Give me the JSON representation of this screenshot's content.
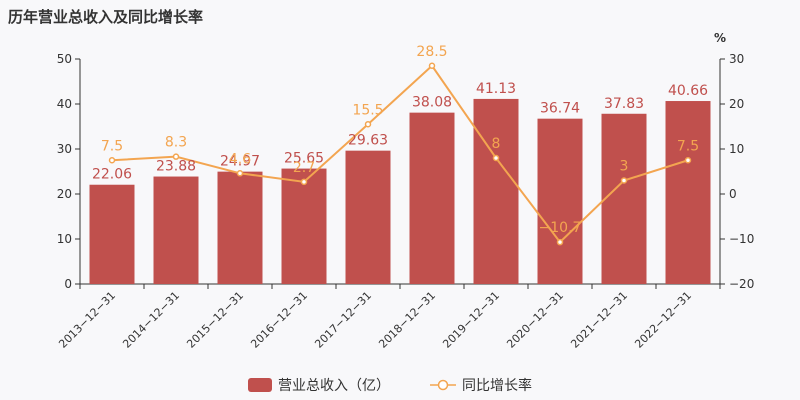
{
  "title": "历年营业总收入及同比增长率",
  "chart_data": {
    "type": "bar",
    "categories": [
      "2013-12-31",
      "2014-12-31",
      "2015-12-31",
      "2016-12-31",
      "2017-12-31",
      "2018-12-31",
      "2019-12-31",
      "2020-12-31",
      "2021-12-31",
      "2022-12-31"
    ],
    "series": [
      {
        "name": "营业总收入（亿）",
        "type": "bar",
        "axis": "left",
        "values": [
          22.06,
          23.88,
          24.97,
          25.65,
          29.63,
          38.08,
          41.13,
          36.74,
          37.83,
          40.66
        ],
        "color": "#c0504d"
      },
      {
        "name": "同比增长率",
        "type": "line",
        "axis": "right",
        "values": [
          7.5,
          8.3,
          4.6,
          2.7,
          15.5,
          28.5,
          8,
          -10.7,
          3,
          7.5
        ],
        "color": "#f3a550"
      }
    ],
    "left_axis": {
      "ylim": [
        0,
        50
      ],
      "ticks": [
        0,
        10,
        20,
        30,
        40,
        50
      ]
    },
    "right_axis": {
      "unit": "%",
      "ylim": [
        -20,
        30
      ],
      "ticks": [
        -20,
        -10,
        0,
        10,
        20,
        30
      ]
    },
    "grid": false,
    "legend": "bottom-center"
  }
}
